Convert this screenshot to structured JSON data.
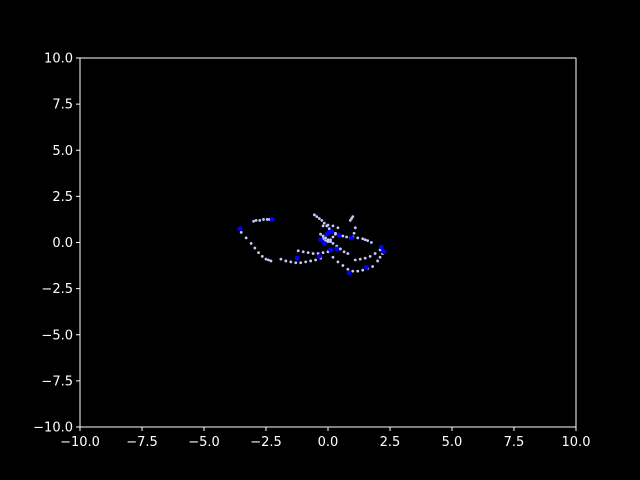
{
  "chart_data": {
    "type": "scatter",
    "title": "",
    "xlabel": "",
    "ylabel": "",
    "xlim": [
      -10,
      10
    ],
    "ylim": [
      -10,
      10
    ],
    "grid": false,
    "x_ticks": [
      "−10.0",
      "−7.5",
      "−5.0",
      "−2.5",
      "0.0",
      "2.5",
      "5.0",
      "7.5",
      "10.0"
    ],
    "x_tick_values": [
      -10,
      -7.5,
      -5,
      -2.5,
      0,
      2.5,
      5,
      7.5,
      10
    ],
    "y_ticks": [
      "10.0",
      "7.5",
      "5.0",
      "2.5",
      "0.0",
      "−2.5",
      "−5.0",
      "−7.5",
      "−10.0"
    ],
    "y_tick_values": [
      10,
      7.5,
      5,
      2.5,
      0,
      -2.5,
      -5,
      -7.5,
      -10
    ],
    "colors": {
      "background": "#000000",
      "axes": "#ffffff",
      "trail": "#c8c8ff",
      "head": "#0000ff"
    },
    "series": [
      {
        "role": "trail",
        "x": [
          -3.5,
          -3.3,
          -3.1,
          -2.95,
          -2.8,
          -2.65,
          -2.5,
          -2.4,
          -2.3,
          -3.0,
          -2.9,
          -2.75,
          -2.6,
          -2.45,
          -2.35,
          -2.25,
          -1.9,
          -1.7,
          -1.5,
          -1.3,
          -1.1,
          -0.9,
          -0.7,
          -0.5,
          -0.3,
          -1.2,
          -1.0,
          -0.8,
          -0.6,
          -0.4,
          -0.2,
          0.0,
          0.2,
          0.4,
          0.6,
          0.8,
          1.0,
          1.2,
          1.4,
          1.6,
          1.8,
          2.0,
          2.1,
          2.2,
          1.1,
          1.3,
          1.5,
          1.7,
          1.9,
          2.1,
          1.75,
          1.6,
          1.5,
          1.4,
          1.2,
          1.0,
          -0.55,
          -0.45,
          -0.35,
          -0.25,
          -0.15,
          -0.05,
          0.05,
          0.15,
          0.3,
          0.45,
          0.6,
          0.75,
          0.9,
          1.0,
          1.05,
          1.1,
          0.9,
          0.95,
          1.0,
          -0.2,
          -0.1,
          0.0,
          0.1,
          0.2,
          0.3,
          -0.3,
          -0.2,
          -0.1,
          0.0,
          0.1,
          0.2,
          0.35,
          0.5,
          0.65,
          0.8,
          0.4,
          0.2,
          0.0,
          -0.2
        ],
        "y": [
          0.55,
          0.25,
          -0.05,
          -0.3,
          -0.55,
          -0.75,
          -0.9,
          -0.95,
          -1.0,
          1.15,
          1.2,
          1.2,
          1.25,
          1.25,
          1.25,
          1.25,
          -0.9,
          -1.0,
          -1.05,
          -1.1,
          -1.1,
          -1.05,
          -1.0,
          -0.95,
          -0.85,
          -0.45,
          -0.5,
          -0.55,
          -0.6,
          -0.6,
          -0.55,
          -0.5,
          -0.8,
          -1.05,
          -1.25,
          -1.45,
          -1.55,
          -1.55,
          -1.5,
          -1.4,
          -1.3,
          -1.0,
          -0.8,
          -0.6,
          -0.95,
          -0.9,
          -0.85,
          -0.75,
          -0.6,
          -0.4,
          0.0,
          0.1,
          0.15,
          0.2,
          0.25,
          0.3,
          1.5,
          1.4,
          1.3,
          1.2,
          1.05,
          0.9,
          0.75,
          0.6,
          0.5,
          0.4,
          0.35,
          0.3,
          0.25,
          0.3,
          0.5,
          0.8,
          1.2,
          1.3,
          1.4,
          0.2,
          0.1,
          0.05,
          0.15,
          0.3,
          0.45,
          0.45,
          0.35,
          0.25,
          0.15,
          0.05,
          -0.05,
          -0.2,
          -0.35,
          -0.5,
          -0.6,
          0.8,
          0.9,
          0.95,
          0.9
        ]
      },
      {
        "role": "head",
        "x": [
          -3.55,
          -2.25,
          -1.25,
          -0.35,
          0.85,
          1.55,
          2.15,
          2.25,
          -0.05,
          0.05,
          0.35,
          0.95,
          -0.15,
          0.15,
          0.45,
          -0.3,
          0.1
        ],
        "y": [
          0.75,
          1.25,
          -0.85,
          -0.75,
          -1.65,
          -1.35,
          -0.25,
          -0.5,
          0.45,
          0.55,
          -0.35,
          0.25,
          -0.05,
          0.6,
          0.4,
          0.15,
          -0.4
        ]
      }
    ]
  }
}
